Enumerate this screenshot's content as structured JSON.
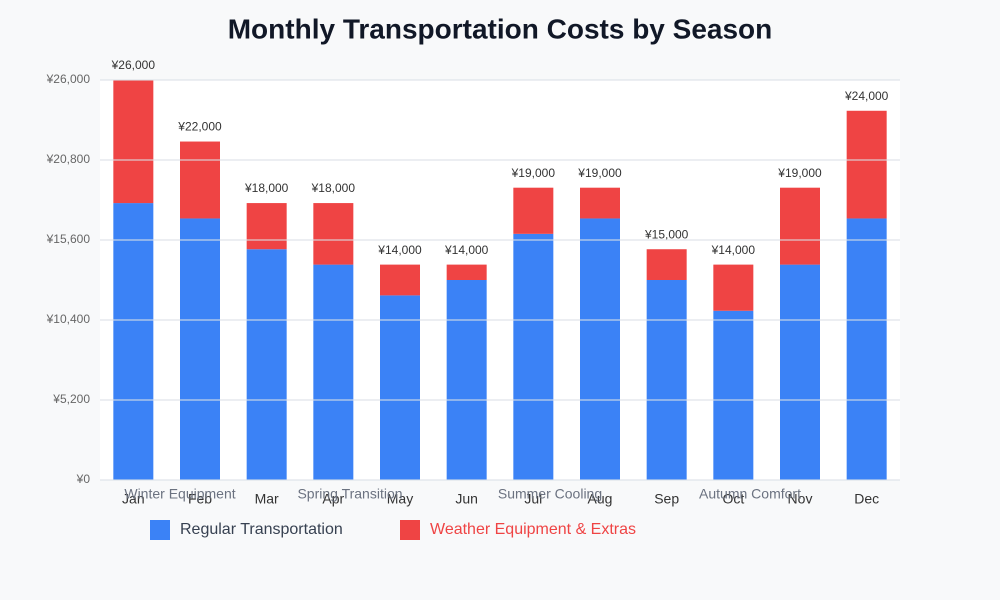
{
  "chart_data": {
    "type": "stacked_bar",
    "title": "Monthly Transportation Costs by Season",
    "categories": [
      "Jan",
      "Feb",
      "Mar",
      "Apr",
      "May",
      "Jun",
      "Jul",
      "Aug",
      "Sep",
      "Oct",
      "Nov",
      "Dec"
    ],
    "series": [
      {
        "name": "Regular Transportation",
        "color": "#3b82f6",
        "values": [
          18000,
          17000,
          15000,
          14000,
          12000,
          13000,
          16000,
          17000,
          13000,
          11000,
          14000,
          17000
        ]
      },
      {
        "name": "Weather Equipment & Extras",
        "color": "#ef4444",
        "values": [
          8000,
          5000,
          3000,
          4000,
          2000,
          1000,
          3000,
          2000,
          2000,
          3000,
          5000,
          7000
        ]
      }
    ],
    "total_labels": [
      "¥26,000",
      "¥22,000",
      "¥18,000",
      "¥18,000",
      "¥14,000",
      "¥14,000",
      "¥19,000",
      "¥19,000",
      "¥15,000",
      "¥14,000",
      "¥19,000",
      "¥24,000"
    ],
    "annotations": [
      "Winter Equipment",
      "Spring Transition",
      "Summer Cooling",
      "Autumn Comfort"
    ],
    "ylim": [
      0,
      26000
    ],
    "yticks": [
      {
        "value": 0,
        "label": "¥0"
      },
      {
        "value": 5200,
        "label": "¥5,200"
      },
      {
        "value": 10400,
        "label": "¥10,400"
      },
      {
        "value": 15600,
        "label": "¥15,600"
      },
      {
        "value": 20800,
        "label": "¥20,800"
      },
      {
        "value": 26000,
        "label": "¥26,000"
      }
    ],
    "grid": true
  }
}
